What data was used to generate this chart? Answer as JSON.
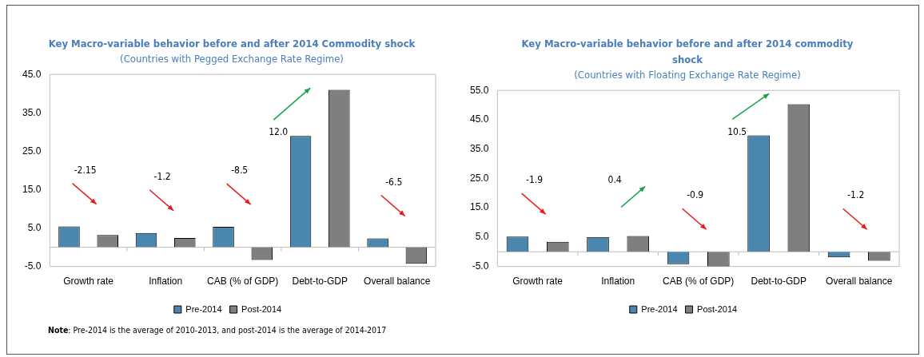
{
  "chart_data": [
    {
      "type": "bar",
      "title": "Key Macro-variable behavior before and after 2014 Commodity shock",
      "subtitle": "(Countries with Pegged Exchange Rate Regime)",
      "categories": [
        "Growth rate",
        "Inflation",
        "CAB (% of GDP)",
        "Debt-to-GDP",
        "Overall balance"
      ],
      "series": [
        {
          "name": "Pre-2014",
          "color": "#4a86ad",
          "values": [
            5.4,
            3.7,
            5.3,
            29.0,
            2.3
          ]
        },
        {
          "name": "Post-2014",
          "color": "#7f7f7f",
          "values": [
            3.2,
            2.4,
            -3.3,
            41.0,
            -4.3
          ]
        }
      ],
      "ylim": [
        -5,
        45
      ],
      "yticks": [
        {
          "value": -5,
          "label": "-5.0"
        },
        {
          "value": 5,
          "label": "5.0"
        },
        {
          "value": 15,
          "label": "15.0"
        },
        {
          "value": 25,
          "label": "25.0"
        },
        {
          "value": 35,
          "label": "35.0"
        },
        {
          "value": 45,
          "label": "45.0"
        }
      ],
      "grid": false,
      "legend": "bottom",
      "annotations": [
        "-2.15",
        "-1.2",
        "-8.5",
        "12.0",
        "-6.5",
        "Note: Pre-2014 is the average of 2010-2013, and post-2014 is the average of 2014-2017"
      ]
    },
    {
      "type": "bar",
      "title": "Key Macro-variable behavior before and after 2014 commodity shock",
      "subtitle": "(Countries with Floating Exchange Rate Regime)",
      "categories": [
        "Growth rate",
        "Inflation",
        "CAB (% of GDP)",
        "Debt-to-GDP",
        "Overall balance"
      ],
      "series": [
        {
          "name": "Pre-2014",
          "color": "#4a86ad",
          "values": [
            5.2,
            5.0,
            -4.2,
            39.7,
            -1.9
          ]
        },
        {
          "name": "Post-2014",
          "color": "#7f7f7f",
          "values": [
            3.4,
            5.4,
            -5.0,
            50.3,
            -3.1
          ]
        }
      ],
      "ylim": [
        -5,
        55
      ],
      "yticks": [
        {
          "value": -5,
          "label": "-5.0"
        },
        {
          "value": 5,
          "label": "5.0"
        },
        {
          "value": 15,
          "label": "15.0"
        },
        {
          "value": 25,
          "label": "25.0"
        },
        {
          "value": 35,
          "label": "35.0"
        },
        {
          "value": 45,
          "label": "45.0"
        },
        {
          "value": 55,
          "label": "55.0"
        }
      ],
      "grid": false,
      "legend": "bottom",
      "annotations": [
        "-1.9",
        "0.4",
        "-0.9",
        "10.5",
        "-1.2"
      ]
    }
  ]
}
